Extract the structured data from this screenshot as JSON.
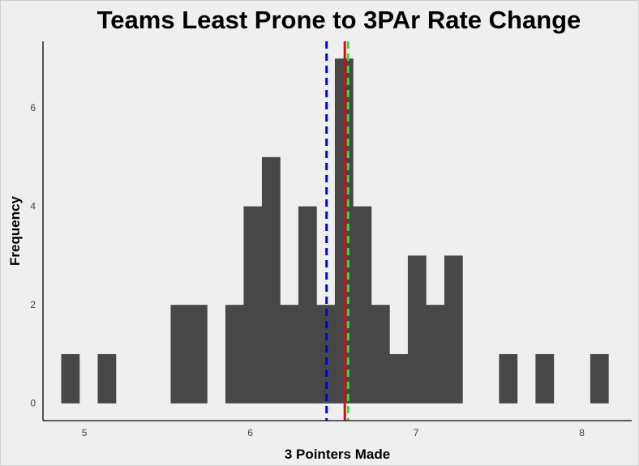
{
  "chart_data": {
    "type": "histogram",
    "title": "Teams Least Prone to 3PAr Rate Change",
    "xlabel": "3 Pointers Made",
    "ylabel": "Frequency",
    "xlim": [
      4.75,
      8.3
    ],
    "ylim": [
      -0.35,
      7.35
    ],
    "x_ticks": [
      5,
      6,
      7,
      8
    ],
    "y_ticks": [
      0,
      2,
      4,
      6
    ],
    "bin_width": 0.11,
    "bars": [
      {
        "x0": 4.86,
        "x1": 4.97,
        "count": 1
      },
      {
        "x0": 5.08,
        "x1": 5.19,
        "count": 1
      },
      {
        "x0": 5.52,
        "x1": 5.63,
        "count": 2
      },
      {
        "x0": 5.63,
        "x1": 5.74,
        "count": 2
      },
      {
        "x0": 5.85,
        "x1": 5.96,
        "count": 2
      },
      {
        "x0": 5.96,
        "x1": 6.07,
        "count": 4
      },
      {
        "x0": 6.07,
        "x1": 6.18,
        "count": 5
      },
      {
        "x0": 6.18,
        "x1": 6.29,
        "count": 2
      },
      {
        "x0": 6.29,
        "x1": 6.4,
        "count": 4
      },
      {
        "x0": 6.4,
        "x1": 6.51,
        "count": 2
      },
      {
        "x0": 6.51,
        "x1": 6.62,
        "count": 7
      },
      {
        "x0": 6.62,
        "x1": 6.73,
        "count": 4
      },
      {
        "x0": 6.73,
        "x1": 6.84,
        "count": 2
      },
      {
        "x0": 6.84,
        "x1": 6.95,
        "count": 1
      },
      {
        "x0": 6.95,
        "x1": 7.06,
        "count": 3
      },
      {
        "x0": 7.06,
        "x1": 7.17,
        "count": 2
      },
      {
        "x0": 7.17,
        "x1": 7.28,
        "count": 3
      },
      {
        "x0": 7.5,
        "x1": 7.61,
        "count": 1
      },
      {
        "x0": 7.72,
        "x1": 7.83,
        "count": 1
      },
      {
        "x0": 8.05,
        "x1": 8.16,
        "count": 1
      }
    ],
    "bar_color": "#474747",
    "reference_lines": [
      {
        "x": 6.46,
        "color": "#0000ee",
        "style": "dashed"
      },
      {
        "x": 6.57,
        "color": "#d01010",
        "style": "solid"
      },
      {
        "x": 6.59,
        "color": "#33dd33",
        "style": "dashed"
      }
    ],
    "grid": false
  }
}
